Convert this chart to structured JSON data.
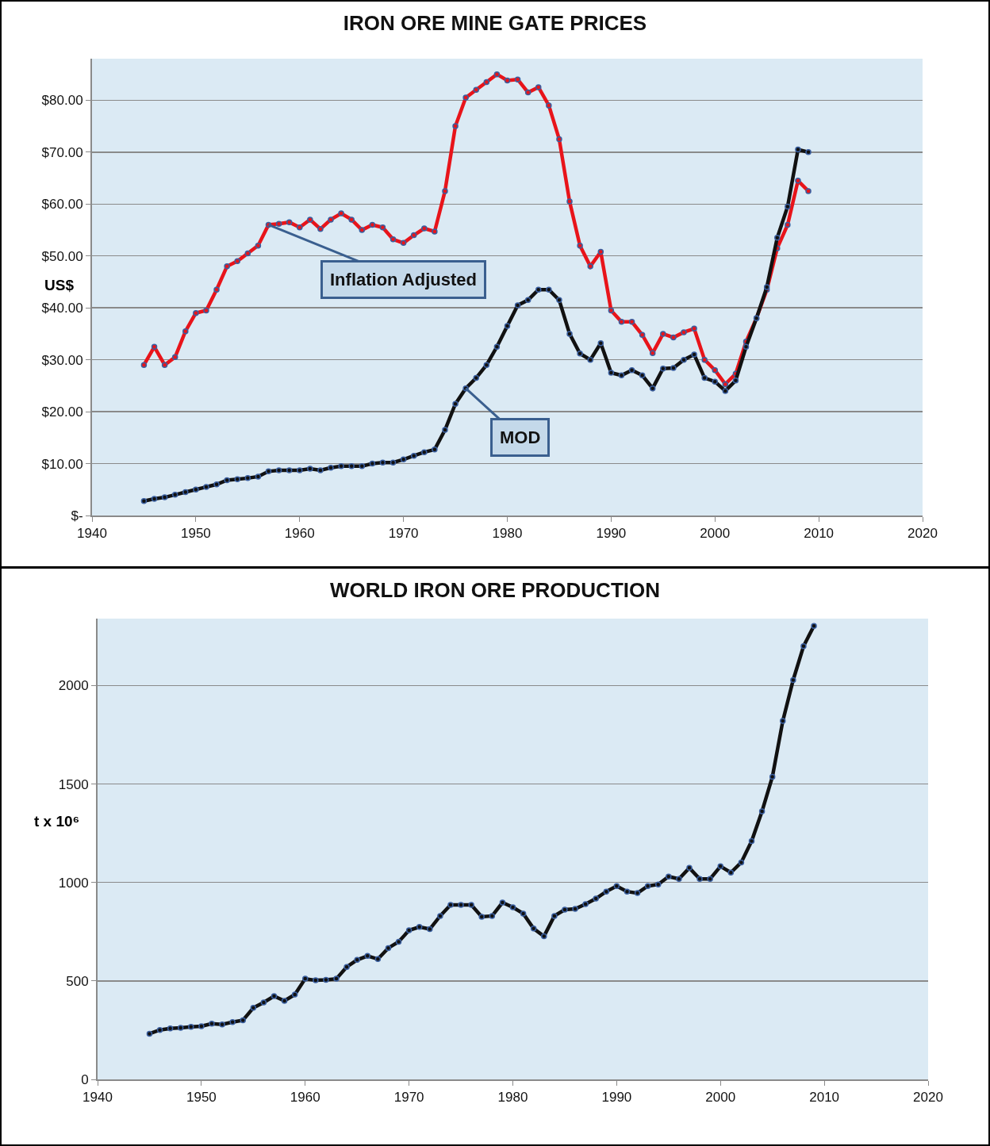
{
  "chart_data": [
    {
      "type": "line",
      "title": "IRON ORE MINE GATE PRICES",
      "ylabel": "US$",
      "x": [
        1945,
        1946,
        1947,
        1948,
        1949,
        1950,
        1951,
        1952,
        1953,
        1954,
        1955,
        1956,
        1957,
        1958,
        1959,
        1960,
        1961,
        1962,
        1963,
        1964,
        1965,
        1966,
        1967,
        1968,
        1969,
        1970,
        1971,
        1972,
        1973,
        1974,
        1975,
        1976,
        1977,
        1978,
        1979,
        1980,
        1981,
        1982,
        1983,
        1984,
        1985,
        1986,
        1987,
        1988,
        1989,
        1990,
        1991,
        1992,
        1993,
        1994,
        1995,
        1996,
        1997,
        1998,
        1999,
        2000,
        2001,
        2002,
        2003,
        2004,
        2005,
        2006,
        2007,
        2008,
        2009
      ],
      "series": [
        {
          "color": "#e8141a",
          "values": [
            29,
            32.5,
            29,
            30.5,
            35.5,
            39,
            39.5,
            43.5,
            48,
            49,
            50.5,
            52,
            56,
            56.2,
            56.5,
            55.5,
            57,
            55.2,
            57,
            58.2,
            57,
            55,
            56,
            55.5,
            53.2,
            52.5,
            54,
            55.3,
            54.7,
            62.5,
            75,
            80.5,
            82,
            83.5,
            85,
            83.8,
            84,
            81.5,
            82.5,
            79,
            72.5,
            60.5,
            52,
            48,
            50.8,
            39.5,
            37.3,
            37.3,
            34.8,
            31.3,
            35,
            34.3,
            35.3,
            36,
            30,
            28,
            25.3,
            27.3,
            33.5,
            38,
            43.5,
            51.5,
            56,
            64.5,
            62.5
          ]
        },
        {
          "color": "#111111",
          "values": [
            2.8,
            3.2,
            3.5,
            4,
            4.5,
            5,
            5.5,
            6,
            6.8,
            7,
            7.2,
            7.5,
            8.5,
            8.7,
            8.7,
            8.7,
            9,
            8.7,
            9.2,
            9.5,
            9.5,
            9.5,
            10,
            10.2,
            10.2,
            10.8,
            11.5,
            12.2,
            12.7,
            16.5,
            21.5,
            24.5,
            26.5,
            29,
            32.5,
            36.5,
            40.5,
            41.5,
            43.5,
            43.5,
            41.5,
            35,
            31.2,
            30,
            33.2,
            27.5,
            27,
            28,
            27,
            24.5,
            28.3,
            28.4,
            30,
            31,
            26.5,
            25.8,
            24,
            26,
            32.5,
            38,
            44,
            53.5,
            59.5,
            70.5,
            70
          ]
        }
      ],
      "xlim": [
        1940,
        2020
      ],
      "xticks": [
        1940,
        1950,
        1960,
        1970,
        1980,
        1990,
        2000,
        2010,
        2020
      ],
      "ylim": [
        0,
        88
      ],
      "yticks": [
        {
          "value": 0,
          "label": "$-"
        },
        {
          "value": 10,
          "label": "$10.00"
        },
        {
          "value": 20,
          "label": "$20.00"
        },
        {
          "value": 30,
          "label": "$30.00"
        },
        {
          "value": 40,
          "label": "$40.00"
        },
        {
          "value": 50,
          "label": "$50.00"
        },
        {
          "value": 60,
          "label": "$60.00"
        },
        {
          "value": 70,
          "label": "$70.00"
        },
        {
          "value": 80,
          "label": "$80.00"
        }
      ],
      "grid": "y",
      "marker": "circle",
      "line_style": "solid",
      "annotations": [
        {
          "text": "Inflation Adjusted",
          "x": 1957,
          "y": 56
        },
        {
          "text": "MOD",
          "x": 1976,
          "y": 24.5
        }
      ]
    },
    {
      "type": "line",
      "title": "WORLD IRON ORE PRODUCTION",
      "ylabel": "t x 10⁶",
      "x": [
        1945,
        1946,
        1947,
        1948,
        1949,
        1950,
        1951,
        1952,
        1953,
        1954,
        1955,
        1956,
        1957,
        1958,
        1959,
        1960,
        1961,
        1962,
        1963,
        1964,
        1965,
        1966,
        1967,
        1968,
        1969,
        1970,
        1971,
        1972,
        1973,
        1974,
        1975,
        1976,
        1977,
        1978,
        1979,
        1980,
        1981,
        1982,
        1983,
        1984,
        1985,
        1986,
        1987,
        1988,
        1989,
        1990,
        1991,
        1992,
        1993,
        1994,
        1995,
        1996,
        1997,
        1998,
        1999,
        2000,
        2001,
        2002,
        2003,
        2004,
        2005,
        2006,
        2007,
        2008,
        2009
      ],
      "series": [
        {
          "color": "#111111",
          "values": [
            232,
            251,
            259,
            262,
            267,
            270,
            283,
            279,
            291,
            300,
            363,
            391,
            423,
            399,
            431,
            511,
            503,
            505,
            511,
            571,
            607,
            627,
            611,
            667,
            699,
            757,
            774,
            763,
            830,
            886,
            886,
            886,
            826,
            830,
            898,
            874,
            842,
            766,
            727,
            830,
            862,
            866,
            890,
            918,
            954,
            982,
            954,
            946,
            982,
            990,
            1030,
            1018,
            1074,
            1018,
            1018,
            1082,
            1050,
            1102,
            1210,
            1361,
            1537,
            1820,
            2028,
            2200,
            2303
          ]
        }
      ],
      "xlim": [
        1940,
        2020
      ],
      "xticks": [
        1940,
        1950,
        1960,
        1970,
        1980,
        1990,
        2000,
        2010,
        2020
      ],
      "ylim": [
        0,
        2340
      ],
      "yticks": [
        0,
        500,
        1000,
        1500,
        2000
      ],
      "grid": "y",
      "marker": "circle",
      "line_style": "solid"
    }
  ]
}
